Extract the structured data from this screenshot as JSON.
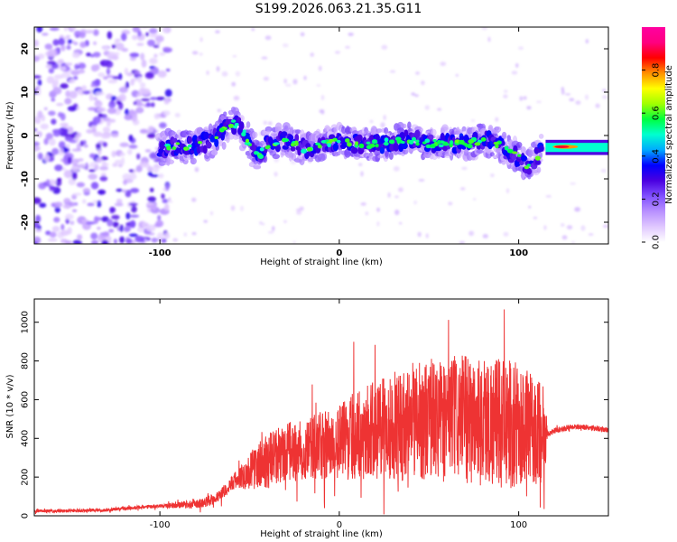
{
  "title": "S199.2026.063.21.35.G11",
  "chart_data": [
    {
      "type": "heatmap",
      "name": "spectrogram",
      "xlabel": "Height of straight line (km)",
      "ylabel": "Frequency (Hz)",
      "xlim": [
        -170,
        150
      ],
      "ylim": [
        -25,
        25
      ],
      "xticks": [
        -100,
        0,
        100
      ],
      "xtick_labels": [
        "-100",
        "0",
        "100"
      ],
      "yticks": [
        -20,
        -10,
        0,
        10,
        20
      ],
      "ytick_labels": [
        "-20",
        "-10",
        "0",
        "10",
        "20"
      ],
      "ridge": {
        "x": [
          -100,
          -90,
          -80,
          -70,
          -60,
          -55,
          -50,
          -45,
          -40,
          -30,
          -20,
          -10,
          0,
          10,
          20,
          30,
          40,
          50,
          60,
          70,
          80,
          90,
          95,
          100,
          105,
          110,
          115,
          120,
          130,
          140,
          150
        ],
        "y": [
          -3,
          -2.5,
          -2.5,
          -1,
          3,
          2,
          -2,
          -5,
          -2,
          -1,
          -3,
          -2,
          -1,
          -2,
          -2,
          -1.5,
          -1,
          -2,
          -1.5,
          -2,
          -1,
          -2,
          -4,
          -5,
          -7,
          -5,
          -2,
          -2.5,
          -2.5,
          -2.8,
          -3
        ]
      },
      "noise_region_x": [
        -170,
        -95
      ]
    },
    {
      "type": "colorbar",
      "name": "amplitude-colorbar",
      "label": "Normalized spectral amplitude",
      "range": [
        0,
        1
      ],
      "ticks": [
        0.0,
        0.2,
        0.4,
        0.6,
        0.8
      ],
      "tick_labels": [
        "0.0",
        "0.2",
        "0.4",
        "0.6",
        "0.8"
      ],
      "colors": [
        "#ffffff",
        "#e0c8ff",
        "#b890ff",
        "#8050ff",
        "#4a00e0",
        "#0000ff",
        "#00aaff",
        "#00ffd0",
        "#00ff40",
        "#a0ff00",
        "#ffff00",
        "#ff9000",
        "#ff0000",
        "#ff0080",
        "#ff00a0"
      ]
    },
    {
      "type": "line",
      "name": "snr",
      "xlabel": "Height of straight line (km)",
      "ylabel": "SNR (10 * v/v)",
      "xlim": [
        -170,
        150
      ],
      "ylim": [
        0,
        1120
      ],
      "xticks": [
        -100,
        0,
        100
      ],
      "xtick_labels": [
        "-100",
        "0",
        "100"
      ],
      "yticks": [
        0,
        200,
        400,
        600,
        800,
        1000
      ],
      "ytick_labels": [
        "0",
        "200",
        "400",
        "600",
        "800",
        "1000"
      ],
      "color": "#ee3333",
      "series": [
        {
          "name": "SNR",
          "x": [
            -170,
            -150,
            -130,
            -110,
            -100,
            -90,
            -80,
            -75,
            -70,
            -65,
            -60,
            -55,
            -50,
            -45,
            -40,
            -35,
            -30,
            -25,
            -20,
            -15,
            -10,
            -5,
            0,
            5,
            10,
            15,
            20,
            25,
            30,
            35,
            40,
            45,
            50,
            55,
            60,
            65,
            70,
            75,
            80,
            85,
            90,
            95,
            100,
            105,
            110,
            113,
            115,
            118,
            120,
            125,
            130,
            135,
            140,
            145,
            150
          ],
          "y": [
            25,
            25,
            30,
            45,
            50,
            55,
            60,
            70,
            90,
            120,
            170,
            200,
            230,
            260,
            280,
            300,
            320,
            330,
            340,
            350,
            360,
            370,
            380,
            400,
            420,
            430,
            440,
            450,
            460,
            470,
            480,
            490,
            500,
            500,
            510,
            500,
            500,
            495,
            490,
            490,
            480,
            470,
            460,
            450,
            440,
            430,
            420,
            430,
            440,
            450,
            460,
            460,
            455,
            450,
            440
          ]
        }
      ],
      "noise_amplitude": {
        "x": [
          -170,
          -100,
          -60,
          -40,
          -20,
          0,
          20,
          40,
          60,
          80,
          100,
          115,
          116,
          150
        ],
        "y": [
          8,
          10,
          35,
          150,
          160,
          200,
          260,
          300,
          320,
          340,
          330,
          250,
          15,
          15
        ]
      }
    }
  ]
}
